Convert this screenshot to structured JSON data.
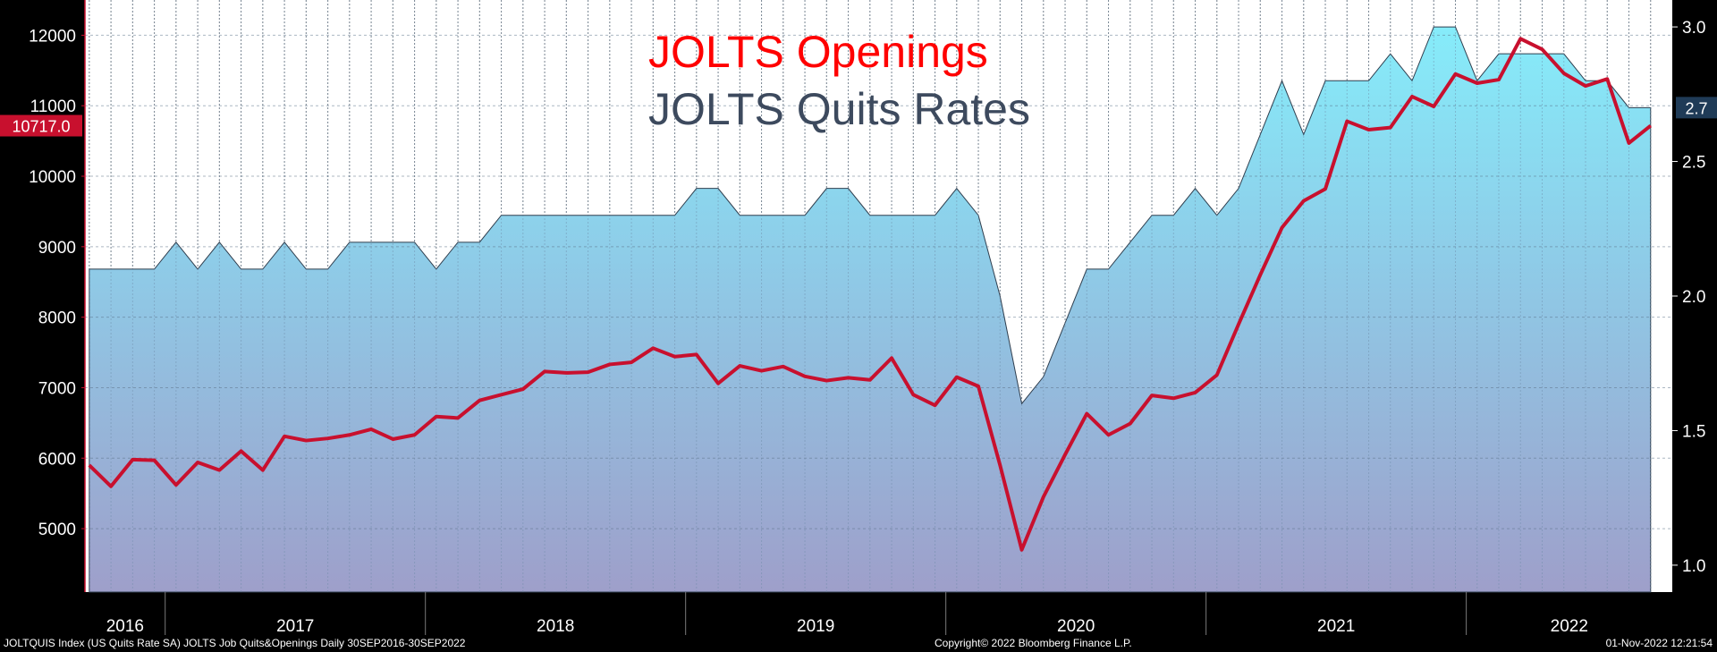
{
  "chart_data": {
    "type": "area",
    "title_lines": [
      {
        "text": "JOLTS Openings",
        "color": "#ff0000"
      },
      {
        "text": "JOLTS Quits Rates",
        "color": "#3d4a5e"
      }
    ],
    "x_labels": [
      "2016",
      "2017",
      "2018",
      "2019",
      "2020",
      "2021",
      "2022"
    ],
    "left_axis": {
      "ticks": [
        5000,
        6000,
        7000,
        8000,
        9000,
        10000,
        11000,
        12000
      ],
      "range": [
        4100,
        12500
      ]
    },
    "right_axis": {
      "ticks": [
        "1.0",
        "1.5",
        "2.0",
        "2.5",
        "3.0"
      ],
      "range": [
        0.9,
        3.1
      ]
    },
    "series": [
      {
        "name": "JOLTS Openings",
        "axis": "left",
        "color": "#c8102e",
        "last_label": "10717.0",
        "x": [
          "2016-09",
          "2016-10",
          "2016-11",
          "2016-12",
          "2017-01",
          "2017-02",
          "2017-03",
          "2017-04",
          "2017-05",
          "2017-06",
          "2017-07",
          "2017-08",
          "2017-09",
          "2017-10",
          "2017-11",
          "2017-12",
          "2018-01",
          "2018-02",
          "2018-03",
          "2018-04",
          "2018-05",
          "2018-06",
          "2018-07",
          "2018-08",
          "2018-09",
          "2018-10",
          "2018-11",
          "2018-12",
          "2019-01",
          "2019-02",
          "2019-03",
          "2019-04",
          "2019-05",
          "2019-06",
          "2019-07",
          "2019-08",
          "2019-09",
          "2019-10",
          "2019-11",
          "2019-12",
          "2020-01",
          "2020-02",
          "2020-03",
          "2020-04",
          "2020-05",
          "2020-06",
          "2020-07",
          "2020-08",
          "2020-09",
          "2020-10",
          "2020-11",
          "2020-12",
          "2021-01",
          "2021-02",
          "2021-03",
          "2021-04",
          "2021-05",
          "2021-06",
          "2021-07",
          "2021-08",
          "2021-09",
          "2021-10",
          "2021-11",
          "2021-12",
          "2022-01",
          "2022-02",
          "2022-03",
          "2022-04",
          "2022-05",
          "2022-06",
          "2022-07",
          "2022-08",
          "2022-09"
        ],
        "values": [
          5900,
          5600,
          5980,
          5970,
          5620,
          5940,
          5830,
          6100,
          5830,
          6310,
          6250,
          6280,
          6330,
          6410,
          6270,
          6330,
          6590,
          6570,
          6820,
          6900,
          6980,
          7230,
          7210,
          7220,
          7330,
          7360,
          7560,
          7440,
          7470,
          7060,
          7310,
          7240,
          7300,
          7160,
          7100,
          7140,
          7110,
          7420,
          6900,
          6750,
          7150,
          7020,
          5900,
          4700,
          5450,
          6050,
          6630,
          6330,
          6490,
          6890,
          6850,
          6930,
          7180,
          7900,
          8600,
          9270,
          9650,
          9820,
          10780,
          10660,
          10690,
          11130,
          10990,
          11450,
          11320,
          11370,
          11950,
          11800,
          11460,
          11280,
          11380,
          10470,
          10717
        ]
      },
      {
        "name": "JOLTS Quits Rates",
        "axis": "right",
        "color": "#8fd7ef",
        "last_label": "2.7",
        "x": [
          "2016-09",
          "2016-10",
          "2016-11",
          "2016-12",
          "2017-01",
          "2017-02",
          "2017-03",
          "2017-04",
          "2017-05",
          "2017-06",
          "2017-07",
          "2017-08",
          "2017-09",
          "2017-10",
          "2017-11",
          "2017-12",
          "2018-01",
          "2018-02",
          "2018-03",
          "2018-04",
          "2018-05",
          "2018-06",
          "2018-07",
          "2018-08",
          "2018-09",
          "2018-10",
          "2018-11",
          "2018-12",
          "2019-01",
          "2019-02",
          "2019-03",
          "2019-04",
          "2019-05",
          "2019-06",
          "2019-07",
          "2019-08",
          "2019-09",
          "2019-10",
          "2019-11",
          "2019-12",
          "2020-01",
          "2020-02",
          "2020-03",
          "2020-04",
          "2020-05",
          "2020-06",
          "2020-07",
          "2020-08",
          "2020-09",
          "2020-10",
          "2020-11",
          "2020-12",
          "2021-01",
          "2021-02",
          "2021-03",
          "2021-04",
          "2021-05",
          "2021-06",
          "2021-07",
          "2021-08",
          "2021-09",
          "2021-10",
          "2021-11",
          "2021-12",
          "2022-01",
          "2022-02",
          "2022-03",
          "2022-04",
          "2022-05",
          "2022-06",
          "2022-07",
          "2022-08",
          "2022-09"
        ],
        "values": [
          2.1,
          2.1,
          2.1,
          2.1,
          2.2,
          2.1,
          2.2,
          2.1,
          2.1,
          2.2,
          2.1,
          2.1,
          2.2,
          2.2,
          2.2,
          2.2,
          2.1,
          2.2,
          2.2,
          2.3,
          2.3,
          2.3,
          2.3,
          2.3,
          2.3,
          2.3,
          2.3,
          2.3,
          2.4,
          2.4,
          2.3,
          2.3,
          2.3,
          2.3,
          2.4,
          2.4,
          2.3,
          2.3,
          2.3,
          2.3,
          2.4,
          2.3,
          2.0,
          1.6,
          1.7,
          1.9,
          2.1,
          2.1,
          2.2,
          2.3,
          2.3,
          2.4,
          2.3,
          2.4,
          2.6,
          2.8,
          2.6,
          2.8,
          2.8,
          2.8,
          2.9,
          2.8,
          3.0,
          3.0,
          2.8,
          2.9,
          2.9,
          2.9,
          2.9,
          2.8,
          2.8,
          2.7,
          2.7
        ]
      }
    ],
    "grid": true
  },
  "footer": {
    "left": "JOLTQUIS Index (US Quits Rate SA) JOLTS Job Quits&Openings  Daily 30SEP2016-30SEP2022",
    "center": "Copyright© 2022 Bloomberg Finance L.P.",
    "right": "01-Nov-2022 12:21:54"
  }
}
